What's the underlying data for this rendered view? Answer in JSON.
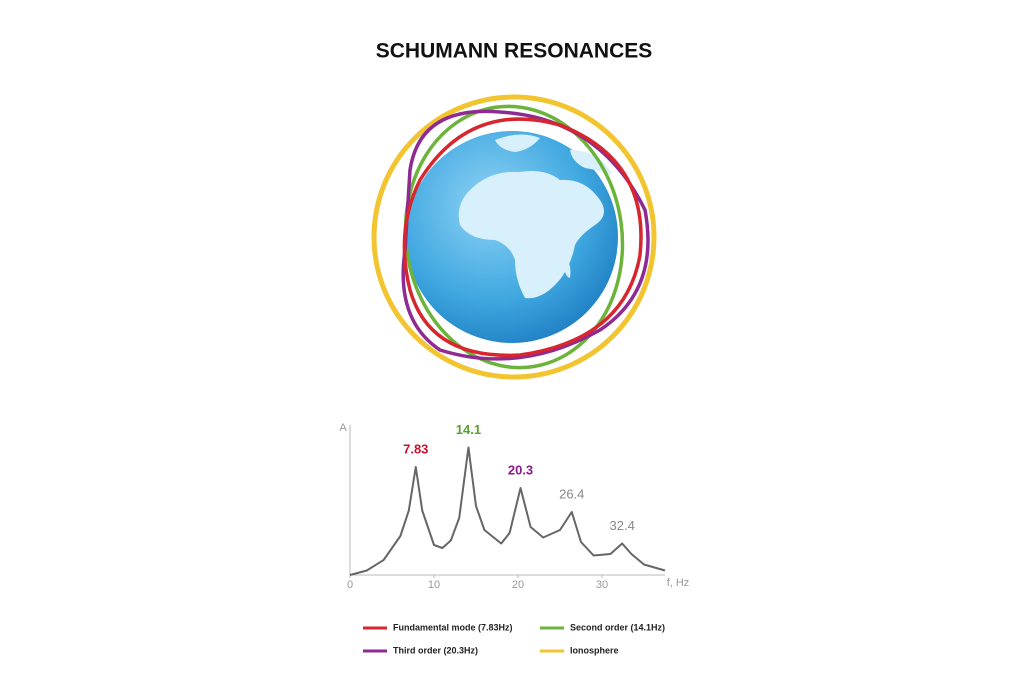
{
  "chart_data": {
    "type": "line",
    "title": "SCHUMANN RESONANCES",
    "x_label": "f, Hz",
    "y_label": "A",
    "x": [
      0,
      2,
      4,
      6,
      7,
      7.83,
      8.6,
      10,
      11,
      12,
      13,
      14.1,
      15,
      16,
      18,
      19,
      20.3,
      21.5,
      23,
      25,
      26.4,
      27.5,
      29,
      31,
      32.4,
      33.5,
      35,
      37.5
    ],
    "values": [
      0,
      0.3,
      1.0,
      2.6,
      4.3,
      7.2,
      4.3,
      2.0,
      1.8,
      2.3,
      3.8,
      8.5,
      4.6,
      3.0,
      2.1,
      2.8,
      5.8,
      3.2,
      2.5,
      3.0,
      4.2,
      2.2,
      1.3,
      1.4,
      2.1,
      1.4,
      0.7,
      0.3
    ],
    "color": "#666666",
    "xlim": [
      0,
      37.5
    ],
    "ylim": [
      0,
      10
    ],
    "xticks": [
      0,
      10,
      20,
      30
    ],
    "peaks": [
      {
        "x": 7.83,
        "y": 7.2,
        "color": "#c8102e"
      },
      {
        "x": 14.1,
        "y": 8.5,
        "color": "#5aa02c"
      },
      {
        "x": 20.3,
        "y": 5.8,
        "color": "#8b1a8b"
      },
      {
        "x": 26.4,
        "y": 4.2,
        "color": "#888888"
      },
      {
        "x": 32.4,
        "y": 2.1,
        "color": "#888888"
      }
    ],
    "legend": [
      {
        "label": "Fundamental mode (7.83Hz)",
        "color": "#d7262e"
      },
      {
        "label": "Second order (14.1Hz)",
        "color": "#6bb33a"
      },
      {
        "label": "Third order (20.3Hz)",
        "color": "#8e2a92"
      },
      {
        "label": "Ionosphere",
        "color": "#f2c530"
      }
    ]
  }
}
